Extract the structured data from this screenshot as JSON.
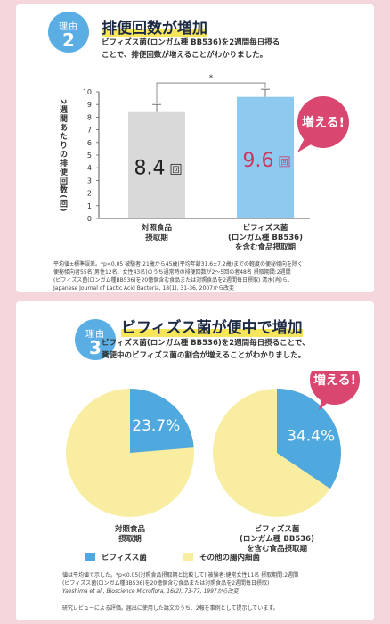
{
  "section1": {
    "badge_label": "理由",
    "badge_number": "2",
    "title": "排便回数が増加",
    "desc_line1": "ビフィズス菌(ロンガム種 BB536)を2週間毎日摂る",
    "desc_line2": "ことで、排便回数が増えることがわかりました。",
    "note_lines": [
      "平均値±標準誤差。*p<0.05 被験者:21歳から45歳(平均年齢31.6±7.2歳)までの軽度の便秘傾向を除く",
      "便秘傾向者55名(男性12名、女性43名)のうち通常時の排便回数が2〜5回の者48名 摂取期間:2週間",
      "(ビフィズス菌(ロンガム種BB536)を20億個含む食品または対照食品を2週間毎日摂取) 清水(肖)ら、",
      "Japanese Journal of Lactic Acid Bacteria, 18(1), 31-36, 2007から改変"
    ]
  },
  "section2": {
    "badge_label": "理由",
    "badge_number": "3",
    "title": "ビフィズス菌が便中で増加",
    "desc_line1": "ビフィズス菌(ロンガム種 BB536)を2週間毎日摂ることで、",
    "desc_line2": "糞便中のビフィズス菌の割合が増えることがわかりました。",
    "note_lines": [
      "値は平均値で示した。*p<0.05(対照食品摂取期と比較して) 被験者:健常女性11名 摂取期間:2週間",
      "(ビフィズス菌(ロンガム種BB536)を20億個含む食品または対照食品を2週間毎日摂取)",
      "Yaeshima et al., Bioscience Microflora, 16(2), 73-77, 1997から改変"
    ],
    "footer": "研究レビューによる評価。届出に使用した論文のうち、2報を事例として提示しています。"
  },
  "chart_data": [
    {
      "type": "bar",
      "ylabel": "2週間あたりの排便回数(回)",
      "ylim": [
        0,
        10
      ],
      "yticks": [
        "0",
        "1",
        "2",
        "3",
        "4",
        "5",
        "6",
        "7",
        "8",
        "9",
        "10"
      ],
      "categories": [
        [
          "対照食品",
          "摂取期"
        ],
        [
          "ビフィズス菌",
          "(ロンガム種 BB536)",
          "を含む食品摂取期"
        ]
      ],
      "values": [
        8.4,
        9.6
      ],
      "error": [
        0.6,
        0.6
      ],
      "value_labels": [
        "8.4",
        "9.6"
      ],
      "unit": "回",
      "colors": [
        "#d9d9d9",
        "#8ec9ef"
      ],
      "value_colors": [
        "#222222",
        "#d0375f"
      ],
      "significance": "*",
      "callout": "増える!",
      "callout_color": "#d9466f"
    },
    {
      "type": "pie",
      "charts": [
        {
          "label": [
            "対照食品",
            "摂取期"
          ],
          "bifido": 23.7,
          "value_label": "23.7%"
        },
        {
          "label": [
            "ビフィズス菌",
            "(ロンガム種 BB536)",
            "を含む食品摂取期"
          ],
          "bifido": 34.4,
          "value_label": "34.4%"
        }
      ],
      "legend": [
        {
          "name": "ビフィズス菌",
          "color": "#4fa8de"
        },
        {
          "name": "その他の腸内細菌",
          "color": "#f8eda0"
        }
      ],
      "callout": "増える!",
      "callout_color": "#d9466f"
    }
  ]
}
